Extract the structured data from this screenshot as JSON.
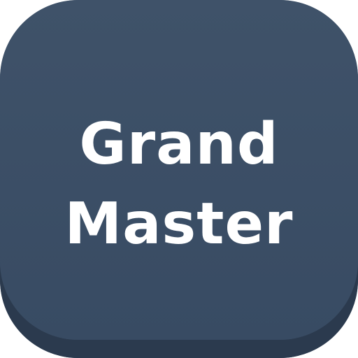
{
  "app_icon": {
    "title_line1": "Grand",
    "title_line2": "Master",
    "colors": {
      "background": "#384b63",
      "bottom_edge": "#2b3a4e",
      "text": "#ffffff"
    }
  }
}
